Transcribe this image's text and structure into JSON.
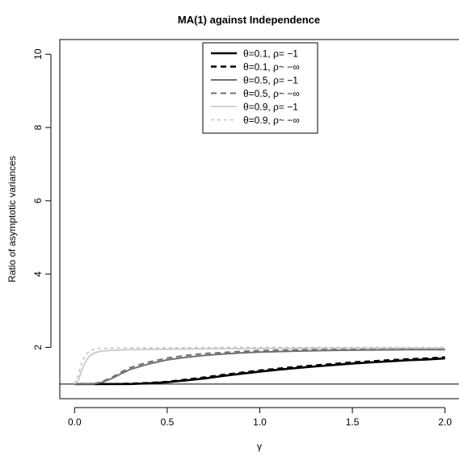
{
  "chart_data": {
    "type": "line",
    "title": "MA(1) against Independence",
    "xlabel": "γ",
    "ylabel": "Ratio of asymptotic variances",
    "xlim": [
      -0.08,
      2.08
    ],
    "ylim": [
      0.6,
      10.4
    ],
    "x_ticks": [
      0.0,
      0.5,
      1.0,
      1.5,
      2.0
    ],
    "x_tick_labels": [
      "0.0",
      "0.5",
      "1.0",
      "1.5",
      "2.0"
    ],
    "y_ticks": [
      2,
      4,
      6,
      8,
      10
    ],
    "y_tick_labels": [
      "2",
      "4",
      "6",
      "8",
      "10"
    ],
    "reference_line_y": 1,
    "grid": false,
    "legend_position": "top-center",
    "series": [
      {
        "name": "θ=0.1, ρ= −1",
        "color": "#000000",
        "dash": "solid",
        "width": 2.6,
        "x": [
          0,
          0.1,
          0.2,
          0.3,
          0.4,
          0.5,
          0.6,
          0.7,
          0.8,
          0.9,
          1.0,
          1.1,
          1.2,
          1.3,
          1.4,
          1.5,
          1.6,
          1.7,
          1.8,
          1.9,
          2.0
        ],
        "y": [
          1.0,
          1.0,
          1.0,
          1.0,
          1.02,
          1.05,
          1.1,
          1.15,
          1.22,
          1.28,
          1.34,
          1.39,
          1.44,
          1.48,
          1.52,
          1.56,
          1.59,
          1.62,
          1.65,
          1.67,
          1.7
        ]
      },
      {
        "name": "θ=0.1, ρ~ −∞",
        "color": "#000000",
        "dash": "7,5",
        "width": 2.6,
        "x": [
          0,
          0.1,
          0.2,
          0.3,
          0.4,
          0.5,
          0.6,
          0.7,
          0.8,
          0.9,
          1.0,
          1.1,
          1.2,
          1.3,
          1.4,
          1.5,
          1.6,
          1.7,
          1.8,
          1.9,
          2.0
        ],
        "y": [
          1.0,
          1.0,
          1.0,
          1.01,
          1.03,
          1.06,
          1.12,
          1.18,
          1.25,
          1.31,
          1.37,
          1.42,
          1.47,
          1.51,
          1.55,
          1.59,
          1.62,
          1.65,
          1.68,
          1.7,
          1.73
        ]
      },
      {
        "name": "θ=0.5, ρ= −1",
        "color": "#707070",
        "dash": "solid",
        "width": 2.0,
        "x": [
          0,
          0.05,
          0.1,
          0.15,
          0.2,
          0.25,
          0.3,
          0.4,
          0.5,
          0.6,
          0.7,
          0.8,
          0.9,
          1.0,
          1.2,
          1.4,
          1.6,
          1.8,
          2.0
        ],
        "y": [
          1.0,
          1.0,
          1.0,
          1.05,
          1.15,
          1.28,
          1.4,
          1.55,
          1.66,
          1.73,
          1.78,
          1.82,
          1.85,
          1.87,
          1.9,
          1.92,
          1.93,
          1.94,
          1.94
        ]
      },
      {
        "name": "θ=0.5, ρ~ −∞",
        "color": "#707070",
        "dash": "7,5",
        "width": 2.0,
        "x": [
          0,
          0.05,
          0.1,
          0.15,
          0.2,
          0.25,
          0.3,
          0.4,
          0.5,
          0.6,
          0.7,
          0.8,
          0.9,
          1.0,
          1.2,
          1.4,
          1.6,
          1.8,
          2.0
        ],
        "y": [
          1.0,
          1.0,
          1.0,
          1.07,
          1.18,
          1.32,
          1.45,
          1.6,
          1.71,
          1.78,
          1.83,
          1.86,
          1.89,
          1.91,
          1.93,
          1.95,
          1.96,
          1.96,
          1.97
        ]
      },
      {
        "name": "θ=0.9, ρ= −1",
        "color": "#c4c4c4",
        "dash": "solid",
        "width": 1.6,
        "x": [
          0,
          0.02,
          0.04,
          0.06,
          0.08,
          0.1,
          0.12,
          0.15,
          0.2,
          0.3,
          0.5,
          0.8,
          1.0,
          1.5,
          2.0
        ],
        "y": [
          1.0,
          1.1,
          1.4,
          1.62,
          1.76,
          1.83,
          1.87,
          1.9,
          1.92,
          1.94,
          1.95,
          1.96,
          1.97,
          1.98,
          1.98
        ]
      },
      {
        "name": "θ=0.9, ρ~ −∞",
        "color": "#c4c4c4",
        "dash": "4,4",
        "width": 1.6,
        "x": [
          0,
          0.02,
          0.04,
          0.06,
          0.08,
          0.1,
          0.12,
          0.15,
          0.2,
          0.3,
          0.5,
          0.8,
          1.0,
          1.5,
          2.0
        ],
        "y": [
          1.0,
          1.25,
          1.6,
          1.8,
          1.9,
          1.94,
          1.96,
          1.97,
          1.98,
          1.99,
          1.99,
          2.0,
          2.0,
          2.0,
          2.0
        ]
      }
    ]
  }
}
